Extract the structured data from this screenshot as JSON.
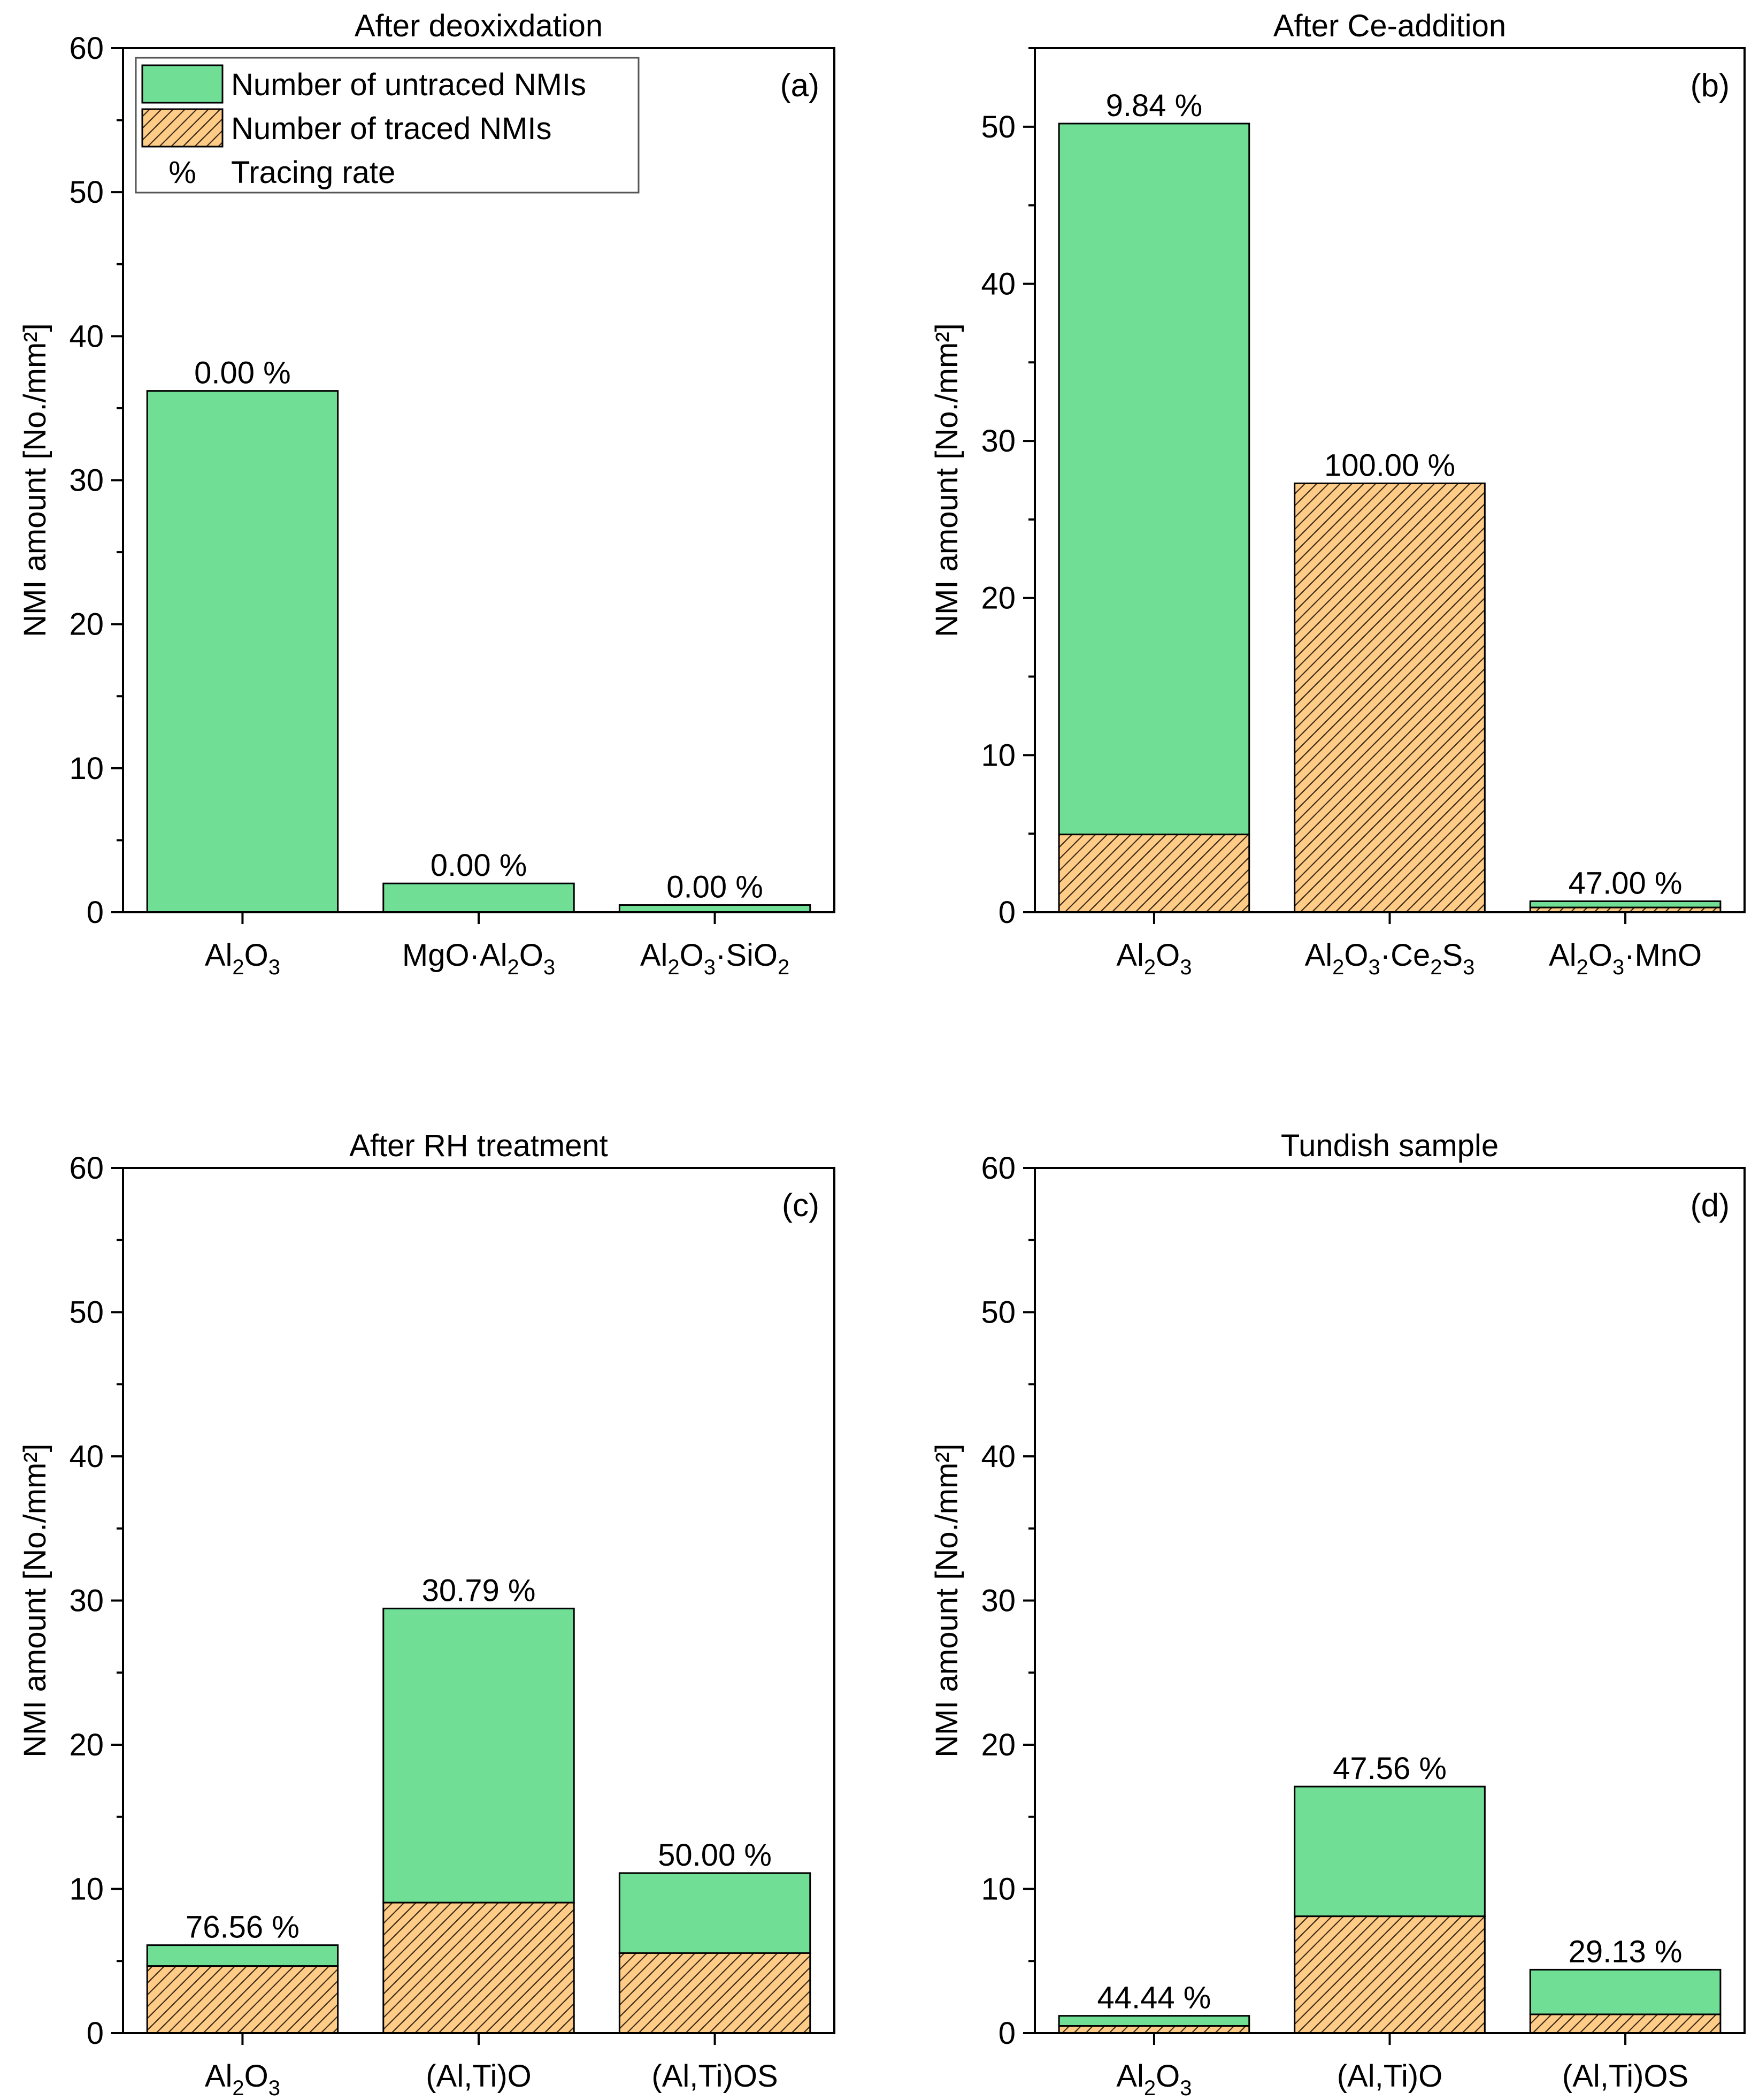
{
  "colors": {
    "untraced": "#70DE94",
    "traced": "#FFCC88",
    "hatch": "#3a2a18",
    "axis": "#000000"
  },
  "legend": {
    "untraced_label": "Number of untraced NMIs",
    "traced_label": "Number of traced NMIs",
    "rate_symbol": "%",
    "rate_label": "Tracing rate"
  },
  "chart_data": [
    {
      "type": "bar",
      "stacked": true,
      "title": "After deoxixdation",
      "panel_label": "(a)",
      "ylabel": "NMI amount [No./mm²]",
      "ylim": [
        0,
        60
      ],
      "yticks": [
        0,
        10,
        20,
        30,
        40,
        50,
        60
      ],
      "show_legend": true,
      "categories": [
        [
          {
            "t": "Al"
          },
          {
            "t": "2",
            "sub": true
          },
          {
            "t": "O"
          },
          {
            "t": "3",
            "sub": true
          }
        ],
        [
          {
            "t": "MgO·Al"
          },
          {
            "t": "2",
            "sub": true
          },
          {
            "t": "O"
          },
          {
            "t": "3",
            "sub": true
          }
        ],
        [
          {
            "t": "Al"
          },
          {
            "t": "2",
            "sub": true
          },
          {
            "t": "O"
          },
          {
            "t": "3",
            "sub": true
          },
          {
            "t": "·SiO"
          },
          {
            "t": "2",
            "sub": true
          }
        ]
      ],
      "traced": [
        0,
        0,
        0
      ],
      "total": [
        36.2,
        2.0,
        0.5
      ],
      "rate_labels": [
        "0.00 %",
        "0.00 %",
        "0.00 %"
      ]
    },
    {
      "type": "bar",
      "stacked": true,
      "title": "After Ce-addition",
      "panel_label": "(b)",
      "ylabel": "NMI amount [No./mm²]",
      "ylim": [
        0,
        55
      ],
      "yticks": [
        0,
        10,
        20,
        30,
        40,
        50
      ],
      "show_legend": false,
      "categories": [
        [
          {
            "t": "Al"
          },
          {
            "t": "2",
            "sub": true
          },
          {
            "t": "O"
          },
          {
            "t": "3",
            "sub": true
          }
        ],
        [
          {
            "t": "Al"
          },
          {
            "t": "2",
            "sub": true
          },
          {
            "t": "O"
          },
          {
            "t": "3",
            "sub": true
          },
          {
            "t": "·Ce"
          },
          {
            "t": "2",
            "sub": true
          },
          {
            "t": "S"
          },
          {
            "t": "3",
            "sub": true
          }
        ],
        [
          {
            "t": "Al"
          },
          {
            "t": "2",
            "sub": true
          },
          {
            "t": "O"
          },
          {
            "t": "3",
            "sub": true
          },
          {
            "t": "·MnO"
          }
        ]
      ],
      "traced": [
        4.95,
        27.3,
        0.3
      ],
      "total": [
        50.2,
        27.3,
        0.7
      ],
      "rate_labels": [
        "9.84 %",
        "100.00 %",
        "47.00 %"
      ]
    },
    {
      "type": "bar",
      "stacked": true,
      "title": "After RH treatment",
      "panel_label": "(c)",
      "ylabel": "NMI amount [No./mm²]",
      "ylim": [
        0,
        60
      ],
      "yticks": [
        0,
        10,
        20,
        30,
        40,
        50,
        60
      ],
      "show_legend": false,
      "categories": [
        [
          {
            "t": "Al"
          },
          {
            "t": "2",
            "sub": true
          },
          {
            "t": "O"
          },
          {
            "t": "3",
            "sub": true
          }
        ],
        [
          {
            "t": "(Al,Ti)O"
          }
        ],
        [
          {
            "t": "(Al,Ti)OS"
          }
        ]
      ],
      "traced": [
        4.65,
        9.05,
        5.55
      ],
      "total": [
        6.1,
        29.45,
        11.1
      ],
      "rate_labels": [
        "76.56 %",
        "30.79 %",
        "50.00 %"
      ]
    },
    {
      "type": "bar",
      "stacked": true,
      "title": "Tundish sample",
      "panel_label": "(d)",
      "ylabel": "NMI amount [No./mm²]",
      "ylim": [
        0,
        60
      ],
      "yticks": [
        0,
        10,
        20,
        30,
        40,
        50,
        60
      ],
      "show_legend": false,
      "categories": [
        [
          {
            "t": "Al"
          },
          {
            "t": "2",
            "sub": true
          },
          {
            "t": "O"
          },
          {
            "t": "3",
            "sub": true
          }
        ],
        [
          {
            "t": "(Al,Ti)O"
          }
        ],
        [
          {
            "t": "(Al,Ti)OS"
          }
        ]
      ],
      "traced": [
        0.5,
        8.1,
        1.3
      ],
      "total": [
        1.2,
        17.1,
        4.4
      ],
      "rate_labels": [
        "44.44 %",
        "47.56 %",
        "29.13 %"
      ]
    }
  ]
}
